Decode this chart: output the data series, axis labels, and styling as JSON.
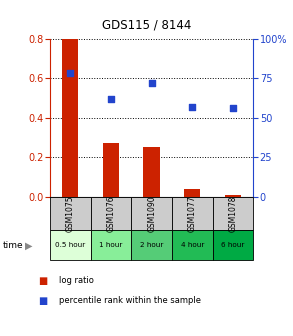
{
  "title": "GDS115 / 8144",
  "samples": [
    "GSM1075",
    "GSM1076",
    "GSM1090",
    "GSM1077",
    "GSM1078"
  ],
  "time_labels": [
    "0.5 hour",
    "1 hour",
    "2 hour",
    "4 hour",
    "6 hour"
  ],
  "log_ratio": [
    0.8,
    0.27,
    0.25,
    0.04,
    0.01
  ],
  "percentile_rank": [
    78,
    62,
    72,
    57,
    56
  ],
  "bar_color": "#cc2200",
  "dot_color": "#2244cc",
  "left_tick_color": "#cc2200",
  "right_tick_color": "#2244cc",
  "ylim_left": [
    0,
    0.8
  ],
  "ylim_right": [
    0,
    100
  ],
  "left_yticks": [
    0,
    0.2,
    0.4,
    0.6,
    0.8
  ],
  "right_yticks": [
    0,
    25,
    50,
    75,
    100
  ],
  "right_yticklabels": [
    "0",
    "25",
    "50",
    "75",
    "100%"
  ],
  "time_colors": [
    "#ddffd8",
    "#88ee99",
    "#55cc77",
    "#22bb55",
    "#00aa44"
  ],
  "sample_bg_color": "#cccccc",
  "bg_color": "#ffffff",
  "bar_width": 0.4
}
